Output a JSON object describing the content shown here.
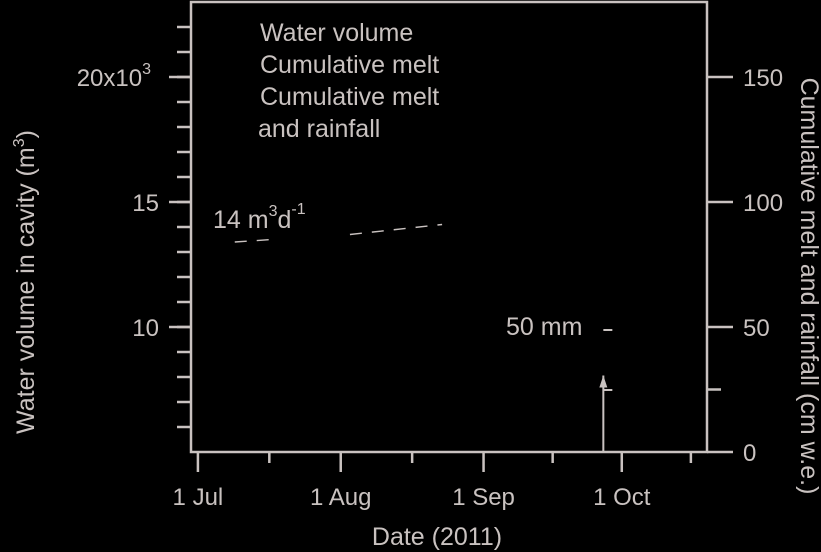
{
  "chart_data": {
    "type": "line",
    "title": "",
    "xlabel": "Date (2011)",
    "ylabel_left": "Water volume in cavity (m",
    "ylabel_left_sup": "3",
    "ylabel_left_close": ")",
    "ylabel_right": "Cumulative melt and rainfall (cm w.e.)",
    "x_ticks": [
      "1 Jul",
      "1 Aug",
      "1 Sep",
      "1 Oct"
    ],
    "x_tick_days": [
      0,
      31,
      62,
      92
    ],
    "x_minor_days": [
      15.5,
      46.5,
      77,
      107
    ],
    "xlim_days": [
      -1.5,
      110.5
    ],
    "y_left": {
      "ticks": [
        {
          "value": 10,
          "label": "10"
        },
        {
          "value": 15,
          "label": "15"
        },
        {
          "value": 20,
          "label": "20x10"
        }
      ],
      "tick_sup": "3",
      "minor_step": 1,
      "range": [
        5,
        23
      ]
    },
    "y_right": {
      "ticks": [
        {
          "value": 0,
          "label": "0"
        },
        {
          "value": 50,
          "label": "50"
        },
        {
          "value": 100,
          "label": "100"
        },
        {
          "value": 150,
          "label": "150"
        }
      ],
      "minor": [
        25
      ],
      "range": [
        0,
        180
      ]
    },
    "legend": {
      "placement": "top",
      "entries": [
        "Water volume",
        "Cumulative melt",
        "Cumulative melt",
        "and rainfall"
      ]
    },
    "series": [
      {
        "style": "dashed",
        "x_days": [
          8,
          16
        ],
        "y_left": [
          13.4,
          13.5
        ]
      },
      {
        "style": "dashed",
        "x_days": [
          33,
          53
        ],
        "y_left": [
          13.7,
          14.1
        ]
      }
    ],
    "annotations": {
      "rate_prefix": "14 m",
      "rate_sup1": "3",
      "rate_mid": "d",
      "rate_sup2": "-1",
      "scale_bar_label": "50 mm",
      "scale_bar_x_days": 88,
      "scale_bar_range_cm": [
        0,
        13
      ]
    }
  }
}
